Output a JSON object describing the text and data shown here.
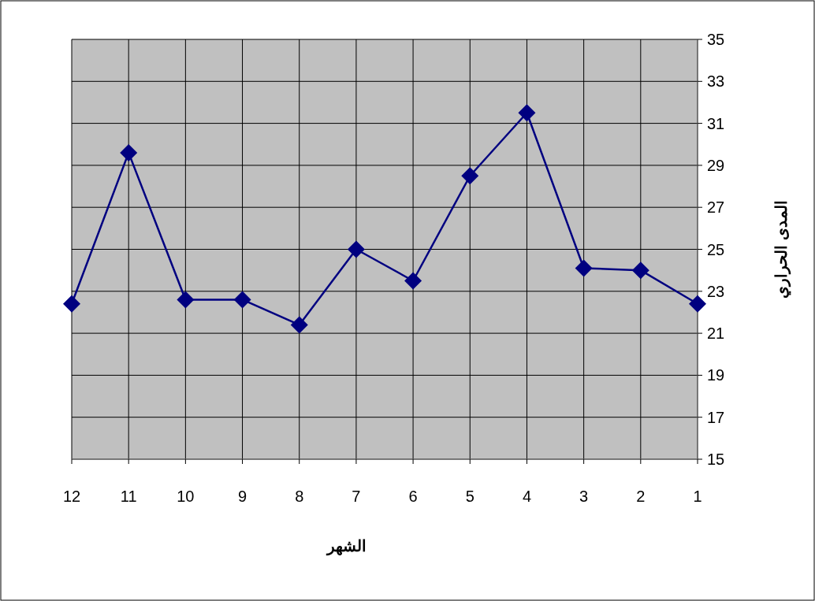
{
  "chart_data": {
    "type": "line",
    "xlabel": "الشهر",
    "ylabel": "المدى الحراري",
    "categories": [
      "12",
      "11",
      "10",
      "9",
      "8",
      "7",
      "6",
      "5",
      "4",
      "3",
      "2",
      "1"
    ],
    "values": [
      22.4,
      29.6,
      22.6,
      22.6,
      21.4,
      25.0,
      23.5,
      28.5,
      31.5,
      24.1,
      24.0,
      22.4
    ],
    "color": "#000080",
    "ylim": [
      15,
      35
    ],
    "yticks": [
      15,
      17,
      19,
      21,
      23,
      25,
      27,
      29,
      31,
      33,
      35
    ],
    "grid": true,
    "marker": "diamond",
    "line_style": "solid"
  }
}
